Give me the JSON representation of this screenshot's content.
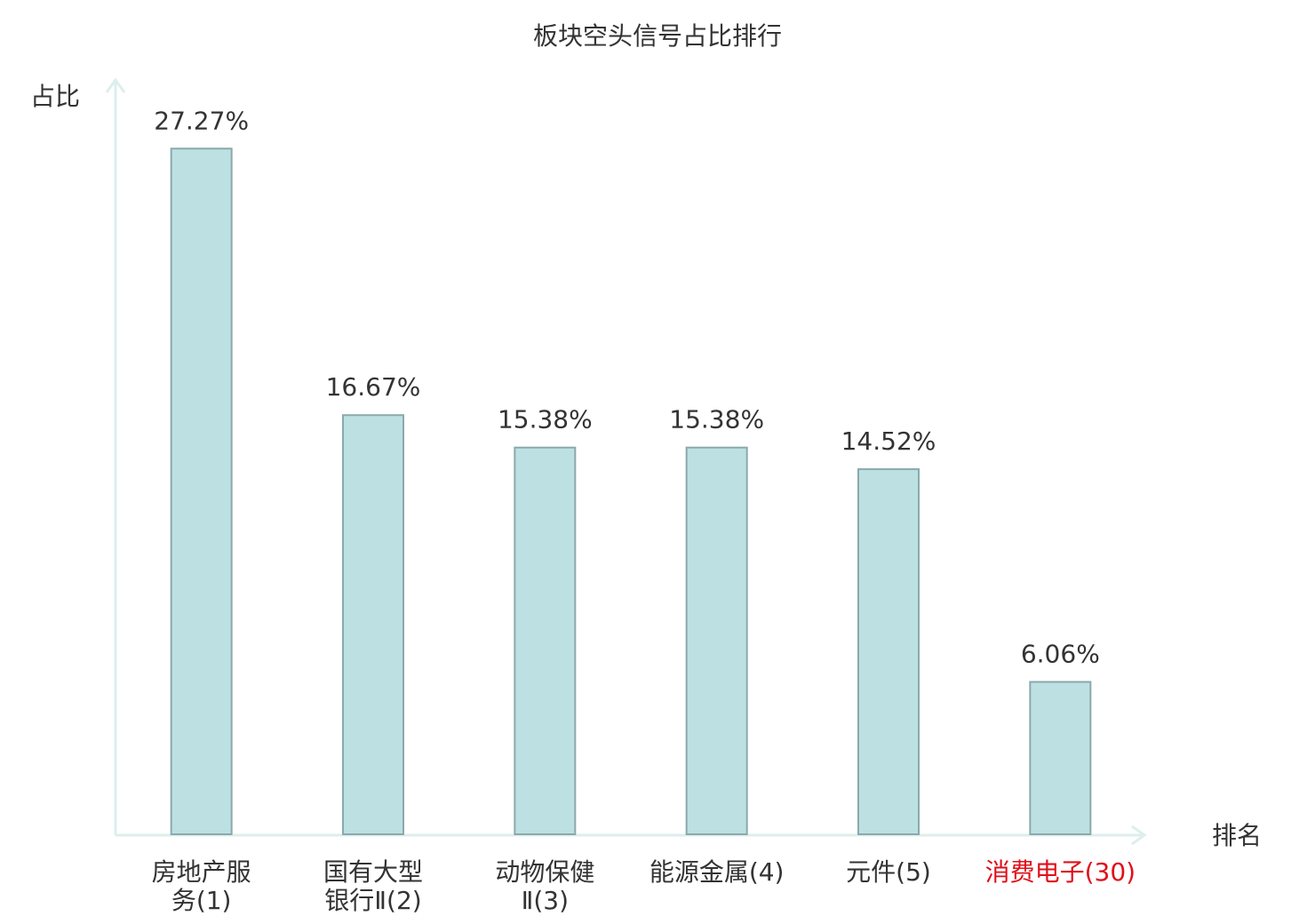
{
  "chart_data": {
    "type": "bar",
    "title": "板块空头信号占比排行",
    "y_label": "占比",
    "x_label": "排名",
    "categories": [
      "房地产服\n务(1)",
      "国有大型\n银行Ⅱ(2)",
      "动物保健\nⅡ(3)",
      "能源金属(4)",
      "元件(5)",
      "消费电子(30)"
    ],
    "category_label_colors": [
      "#333333",
      "#333333",
      "#333333",
      "#333333",
      "#333333",
      "#e0101a"
    ],
    "values": [
      27.27,
      16.67,
      15.38,
      15.38,
      14.52,
      6.06
    ],
    "value_labels": [
      "27.27%",
      "16.67%",
      "15.38%",
      "15.38%",
      "14.52%",
      "6.06%"
    ],
    "color": "#bde0e3",
    "edge_color": "#8ba9aa",
    "ylim": [
      0,
      30
    ]
  }
}
